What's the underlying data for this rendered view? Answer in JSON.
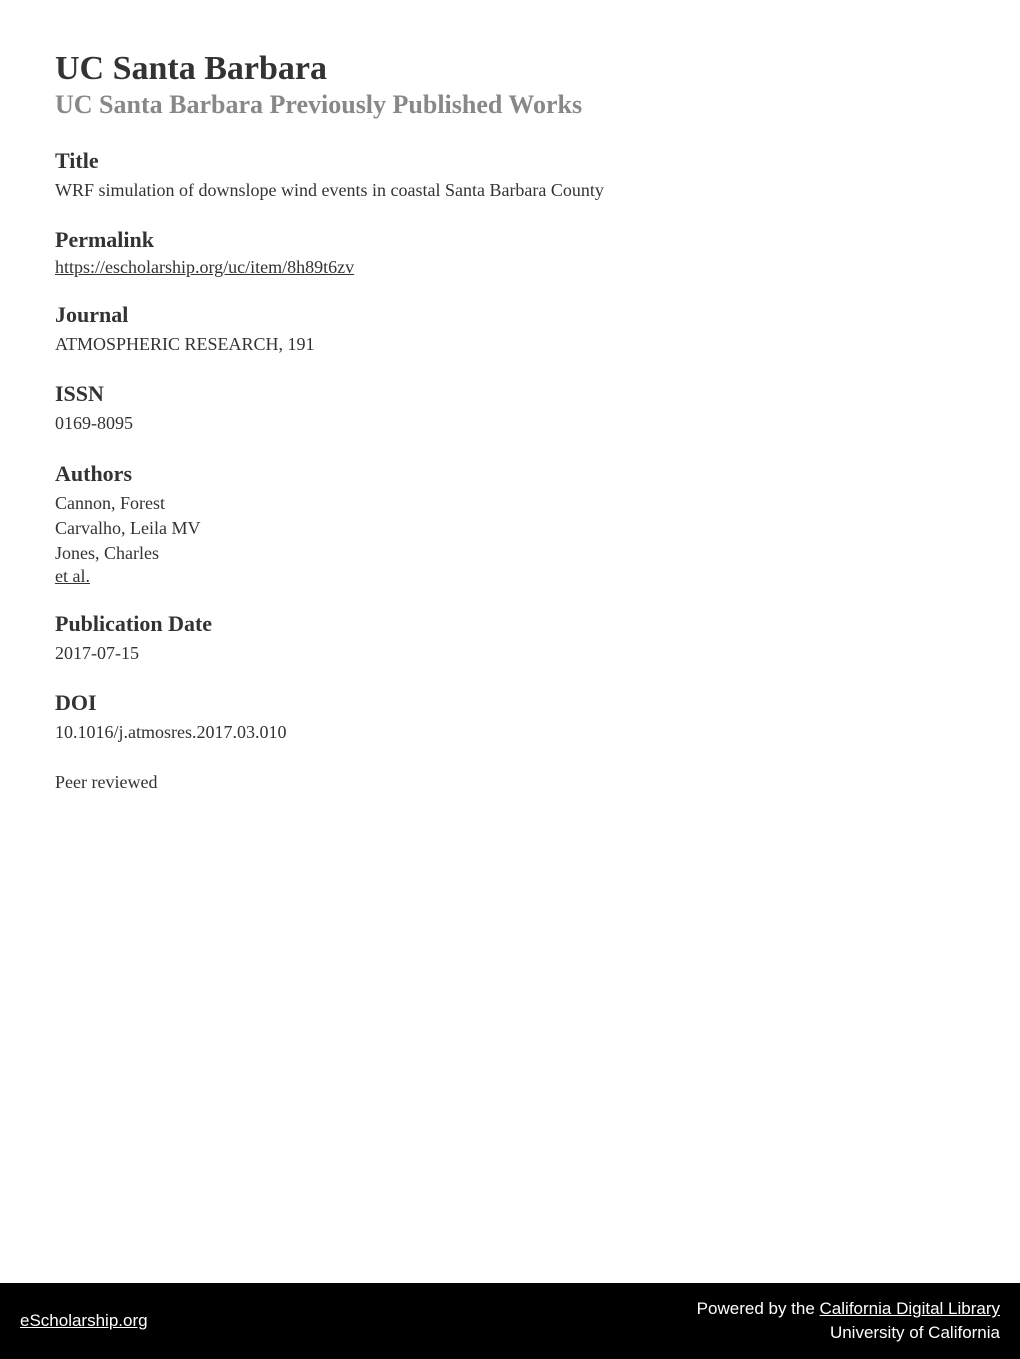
{
  "header": {
    "main_title": "UC Santa Barbara",
    "subtitle": "UC Santa Barbara Previously Published Works"
  },
  "sections": {
    "title": {
      "heading": "Title",
      "text": "WRF simulation of downslope wind events in coastal Santa Barbara County"
    },
    "permalink": {
      "heading": "Permalink",
      "link": "https://escholarship.org/uc/item/8h89t6zv"
    },
    "journal": {
      "heading": "Journal",
      "text": "ATMOSPHERIC RESEARCH, 191"
    },
    "issn": {
      "heading": "ISSN",
      "text": "0169-8095"
    },
    "authors": {
      "heading": "Authors",
      "list": [
        "Cannon, Forest",
        "Carvalho, Leila MV",
        "Jones, Charles"
      ],
      "et_al": "et al."
    },
    "publication_date": {
      "heading": "Publication Date",
      "text": "2017-07-15"
    },
    "doi": {
      "heading": "DOI",
      "text": "10.1016/j.atmosres.2017.03.010"
    },
    "peer_reviewed": {
      "text": "Peer reviewed"
    }
  },
  "footer": {
    "left_link": "eScholarship.org",
    "right_prefix": "Powered by the ",
    "right_link": "California Digital Library",
    "right_line2": "University of California"
  },
  "colors": {
    "background": "#ffffff",
    "text_primary": "#333333",
    "text_secondary": "#888888",
    "footer_bg": "#000000",
    "footer_text": "#ffffff"
  },
  "typography": {
    "main_title_size": 34,
    "subtitle_size": 26,
    "heading_size": 22,
    "body_size": 18,
    "footer_size": 17
  }
}
